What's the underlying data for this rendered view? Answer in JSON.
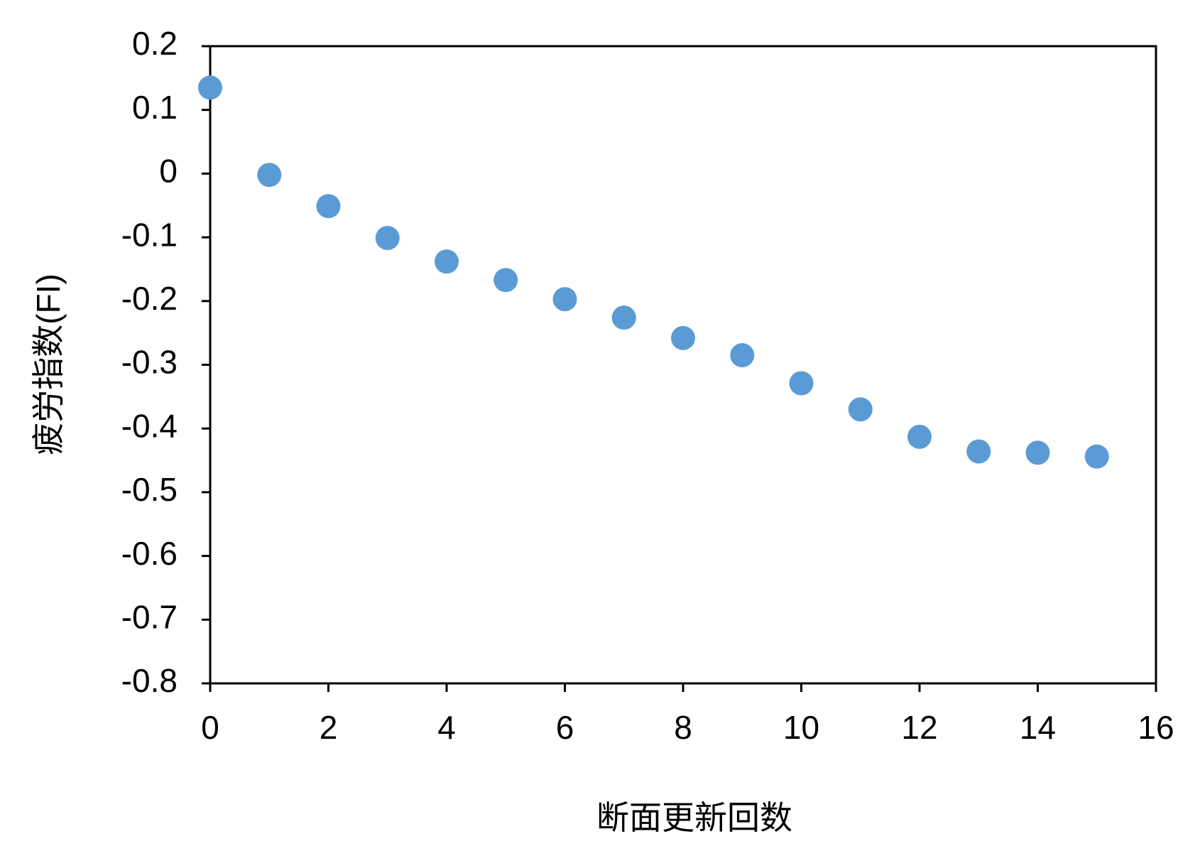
{
  "chart_data": {
    "type": "scatter",
    "xlabel": "断面更新回数",
    "ylabel": "疲労指数(FI)",
    "x": [
      0,
      1,
      2,
      3,
      4,
      5,
      6,
      7,
      8,
      9,
      10,
      11,
      12,
      13,
      14,
      15
    ],
    "series": [
      {
        "color": "#5b9bd5",
        "values": [
          0.135,
          -0.002,
          -0.051,
          -0.101,
          -0.138,
          -0.167,
          -0.197,
          -0.226,
          -0.258,
          -0.285,
          -0.329,
          -0.37,
          -0.413,
          -0.436,
          -0.438,
          -0.444
        ]
      }
    ],
    "xlim": [
      0,
      16
    ],
    "xticks": [
      0,
      2,
      4,
      6,
      8,
      10,
      12,
      14,
      16
    ],
    "ylim": [
      -0.8,
      0.2
    ],
    "yticks": [
      0.2,
      0.1,
      0,
      -0.1,
      -0.2,
      -0.3,
      -0.4,
      -0.5,
      -0.6,
      -0.7,
      -0.8
    ],
    "grid": false
  }
}
